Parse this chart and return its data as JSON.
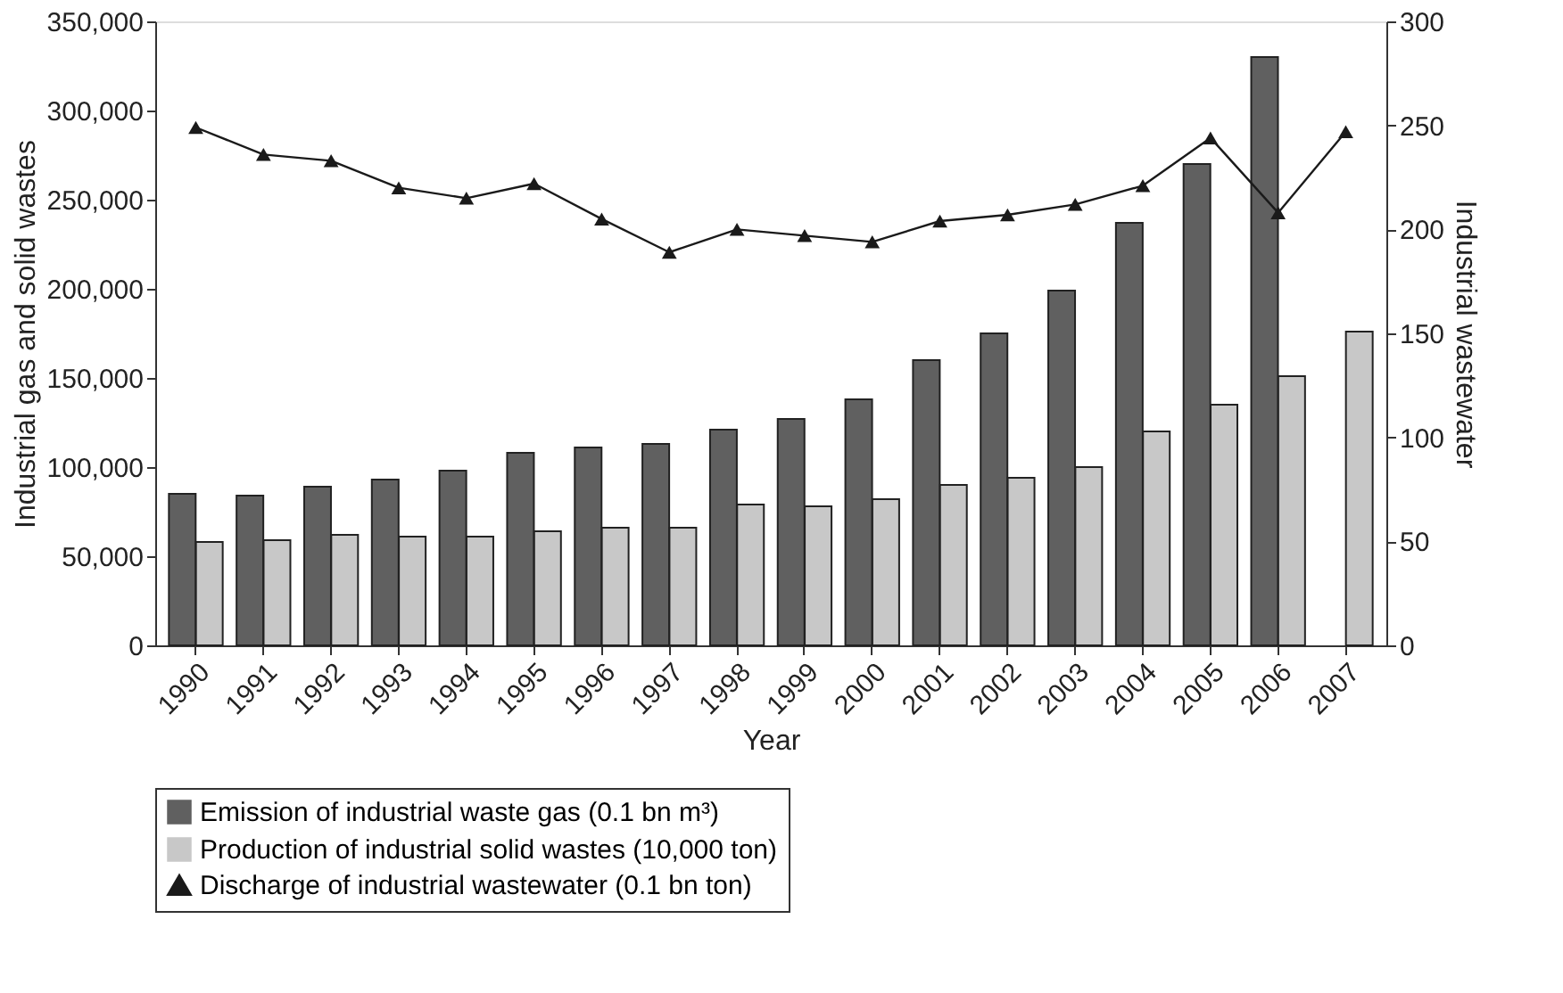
{
  "chart_data": {
    "type": "bar",
    "xlabel": "Year",
    "ylabel": "Industrial gas and solid wastes",
    "y2label": "Industrial wastewater",
    "categories": [
      "1990",
      "1991",
      "1992",
      "1993",
      "1994",
      "1995",
      "1996",
      "1997",
      "1998",
      "1999",
      "2000",
      "2001",
      "2002",
      "2003",
      "2004",
      "2005",
      "2006",
      "2007"
    ],
    "series": [
      {
        "name": "Emission of industrial waste gas (0.1 bn m³)",
        "color": "#606060",
        "values": [
          85000,
          84000,
          89000,
          93000,
          98000,
          108000,
          111000,
          113000,
          121000,
          127000,
          138000,
          160000,
          175000,
          199000,
          237000,
          270000,
          330000,
          null
        ]
      },
      {
        "name": "Production of industrial solid wastes (10,000 ton)",
        "color": "#c8c8c8",
        "values": [
          58000,
          59000,
          62000,
          61000,
          61000,
          64000,
          66000,
          66000,
          79000,
          78000,
          82000,
          90000,
          94000,
          100000,
          120000,
          135000,
          151000,
          176000
        ]
      },
      {
        "name": "Discharge of industrial wastewater (0.1 bn ton)",
        "color": "#1a1a1a",
        "type": "line",
        "axis": "y2",
        "marker": "triangle",
        "line_style": "solid",
        "values": [
          249,
          236,
          233,
          220,
          215,
          222,
          205,
          189,
          200,
          197,
          194,
          204,
          207,
          212,
          221,
          244,
          208,
          247
        ]
      }
    ],
    "ylim": [
      0,
      350000
    ],
    "yticks": [
      0,
      {
        "value": 50000,
        "label": "50,000"
      },
      {
        "value": 100000,
        "label": "100,000"
      },
      {
        "value": 150000,
        "label": "150,000"
      },
      {
        "value": 200000,
        "label": "200,000"
      },
      {
        "value": 250000,
        "label": "250,000"
      },
      {
        "value": 300000,
        "label": "300,000"
      },
      {
        "value": 350000,
        "label": "350,000"
      }
    ],
    "y2lim": [
      0,
      300
    ],
    "y2ticks": [
      0,
      50,
      100,
      150,
      200,
      250,
      300
    ],
    "grid": false,
    "legend": "bottom"
  }
}
